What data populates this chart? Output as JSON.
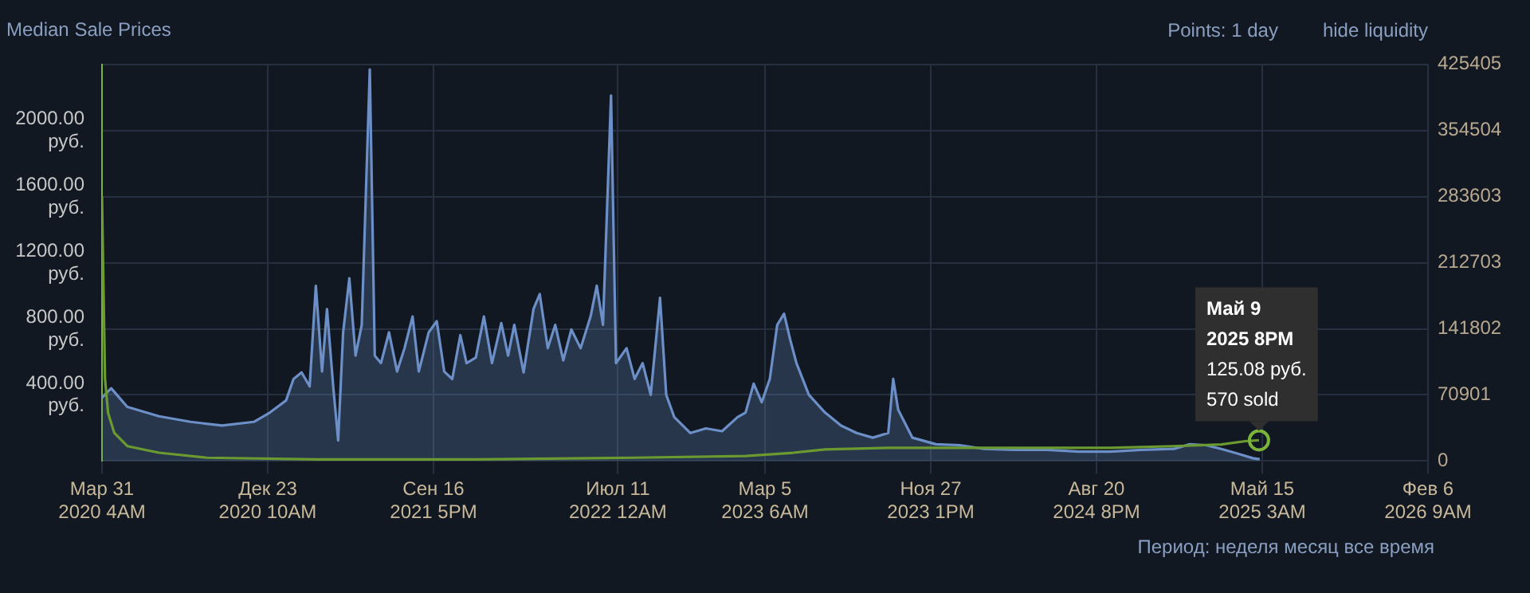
{
  "chart_data": {
    "type": "line",
    "title": "Median Sale Prices",
    "xlim": [
      "2020-03-31T04:00",
      "2026-02-06T09:00"
    ],
    "xticks": [
      {
        "value": "2020-03-31T04:00",
        "label": "Мар 31\n2020 4AM"
      },
      {
        "value": "2020-12-23T10:00",
        "label": "Дек 23\n2020 10AM"
      },
      {
        "value": "2021-09-16T17:00",
        "label": "Сен 16\n2021 5PM"
      },
      {
        "value": "2022-07-11T00:00",
        "label": "Июл 11\n2022 12AM"
      },
      {
        "value": "2023-03-05T06:00",
        "label": "Мар 5\n2023 6AM"
      },
      {
        "value": "2023-11-27T13:00",
        "label": "Ноя 27\n2023 1PM"
      },
      {
        "value": "2024-08-20T20:00",
        "label": "Авг 20\n2024 8PM"
      },
      {
        "value": "2025-05-15T03:00",
        "label": "Май 15\n2025 3AM"
      },
      {
        "value": "2026-02-06T09:00",
        "label": "Фев 6\n2026 9AM"
      }
    ],
    "ylim": [
      0,
      2400
    ],
    "yticks": [
      {
        "value": 400,
        "label": "400.00 руб."
      },
      {
        "value": 800,
        "label": "800.00 руб."
      },
      {
        "value": 1200,
        "label": "1200.00 руб."
      },
      {
        "value": 1600,
        "label": "1600.00 руб."
      },
      {
        "value": 2000,
        "label": "2000.00 руб."
      }
    ],
    "y2lim": [
      0,
      425405
    ],
    "y2ticks": [
      0,
      70901,
      141802,
      212703,
      283603,
      354504,
      425405
    ],
    "grid": true,
    "legend": false,
    "marker": "none",
    "series": [
      {
        "type": "area",
        "axis": "y2",
        "color": "#6b8fc6",
        "x": [
          "2020-03-31T04:00",
          "2020-04-15",
          "2020-05-11",
          "2020-07-01",
          "2020-08-21",
          "2020-10-11",
          "2020-12-01",
          "2020-12-27",
          "2021-01-22",
          "2021-02-03",
          "2021-02-16",
          "2021-03-01",
          "2021-03-11",
          "2021-03-21",
          "2021-03-29",
          "2021-04-08",
          "2021-04-16",
          "2021-04-24",
          "2021-05-04",
          "2021-05-14",
          "2021-05-24",
          "2021-06-06",
          "2021-06-14",
          "2021-06-24",
          "2021-07-07",
          "2021-07-20",
          "2021-08-01",
          "2021-08-14",
          "2021-08-24",
          "2021-09-09",
          "2021-09-22",
          "2021-10-04",
          "2021-10-17",
          "2021-10-30",
          "2021-11-09",
          "2021-11-24",
          "2021-12-07",
          "2021-12-20",
          "2022-01-04",
          "2022-01-15",
          "2022-01-25",
          "2022-02-09",
          "2022-02-25",
          "2022-03-07",
          "2022-03-20",
          "2022-04-01",
          "2022-04-14",
          "2022-04-27",
          "2022-05-12",
          "2022-05-28",
          "2022-06-07",
          "2022-06-17",
          "2022-06-30",
          "2022-07-08",
          "2022-07-25",
          "2022-08-07",
          "2022-08-20",
          "2022-09-02",
          "2022-09-17",
          "2022-09-27",
          "2022-10-10",
          "2022-11-05",
          "2022-11-30",
          "2022-12-26",
          "2023-01-20",
          "2023-02-02",
          "2023-02-15",
          "2023-02-28",
          "2023-03-13",
          "2023-03-25",
          "2023-04-05",
          "2023-04-15",
          "2023-04-25",
          "2023-05-15",
          "2023-06-10",
          "2023-07-06",
          "2023-07-31",
          "2023-08-26",
          "2023-09-20",
          "2023-09-28",
          "2023-10-06",
          "2023-10-29",
          "2023-12-06",
          "2024-01-13",
          "2024-02-21",
          "2024-04-12",
          "2024-06-02",
          "2024-07-23",
          "2024-09-12",
          "2024-11-02",
          "2024-12-24",
          "2025-01-18",
          "2025-02-13",
          "2025-03-10",
          "2025-04-05",
          "2025-04-30",
          "2025-05-11"
        ],
        "values": [
          68000,
          78000,
          58000,
          48000,
          42000,
          38000,
          42000,
          52000,
          65000,
          88000,
          95000,
          80000,
          188000,
          96000,
          163000,
          80000,
          22000,
          138000,
          196000,
          113000,
          146000,
          420000,
          113000,
          105000,
          138000,
          96000,
          121000,
          155000,
          96000,
          138000,
          150000,
          96000,
          88000,
          135000,
          105000,
          111000,
          155000,
          105000,
          148000,
          113000,
          146000,
          95000,
          163000,
          179000,
          121000,
          146000,
          108000,
          141000,
          121000,
          155000,
          188000,
          146000,
          392000,
          105000,
          121000,
          88000,
          105000,
          71000,
          175000,
          71000,
          47000,
          30000,
          35000,
          32000,
          47000,
          52000,
          83000,
          63000,
          88000,
          146000,
          158000,
          130000,
          105000,
          71000,
          52000,
          38000,
          30000,
          25000,
          30000,
          88000,
          55000,
          25000,
          18000,
          17000,
          13000,
          12000,
          12000,
          10000,
          10000,
          12000,
          13000,
          18000,
          17000,
          13000,
          8000,
          3000,
          2000
        ]
      },
      {
        "type": "line",
        "axis": "y",
        "color": "#6a9a30",
        "x": [
          "2020-03-31T04:00",
          "2020-04-05",
          "2020-04-10",
          "2020-04-20",
          "2020-05-11",
          "2020-07-01",
          "2020-09-16",
          "2021-03-14",
          "2021-11-24",
          "2022-08-07",
          "2023-02-02",
          "2023-04-20",
          "2023-06-10",
          "2023-09-20",
          "2024-01-01",
          "2024-05-07",
          "2024-09-12",
          "2024-12-24",
          "2025-03-10",
          "2025-04-18",
          "2025-05-09T20:00"
        ],
        "values": [
          1600,
          500,
          290,
          170,
          90,
          50,
          20,
          10,
          10,
          20,
          30,
          50,
          70,
          80,
          80,
          80,
          80,
          90,
          100,
          120,
          125.08
        ]
      }
    ],
    "annotations": [
      "Points: 1 day",
      "hide liquidity",
      "Период: неделя месяц все время",
      {
        "text": "Май 9\n2025 8PM\n125.08 руб.\n570 sold",
        "x": "2025-05-09T20:00",
        "y": 125.08
      }
    ]
  }
}
